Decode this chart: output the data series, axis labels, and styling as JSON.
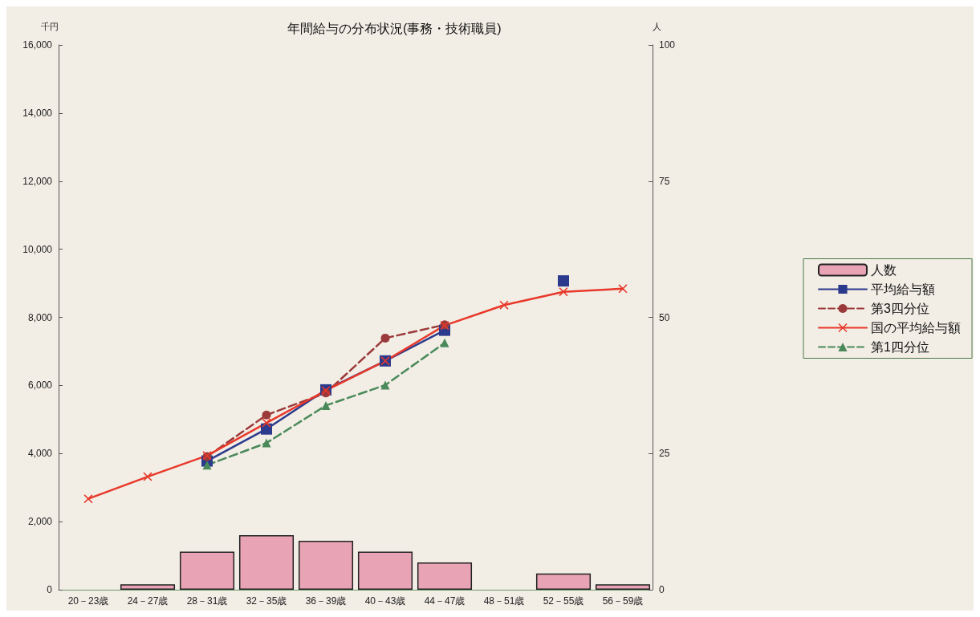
{
  "chart_data": {
    "type": "line",
    "title": "年間給与の分布状況(事務・技術職員)",
    "ylabel": "千円",
    "y2label": "人",
    "categories": [
      "20－23歳",
      "24－27歳",
      "28－31歳",
      "32－35歳",
      "36－39歳",
      "40－43歳",
      "44－47歳",
      "48－51歳",
      "52－55歳",
      "56－59歳"
    ],
    "series": [
      {
        "name": "人数",
        "type": "bar",
        "axis": "y2",
        "color": "#e8a3b4",
        "values": [
          null,
          1,
          7,
          10,
          9,
          7,
          5,
          null,
          3,
          1
        ]
      },
      {
        "name": "平均給与額",
        "color": "#2b3a8c",
        "marker": "square",
        "line_style": "solid",
        "values": [
          null,
          null,
          3780,
          4720,
          5870,
          6720,
          7620,
          null,
          9070,
          null
        ]
      },
      {
        "name": "第3四分位",
        "color": "#9b3a3a",
        "marker": "circle",
        "line_style": "dashed",
        "values": [
          null,
          null,
          3910,
          5130,
          5780,
          7390,
          7780,
          null,
          null,
          null
        ]
      },
      {
        "name": "国の平均給与額",
        "color": "#e8382a",
        "marker": "cross",
        "line_style": "solid",
        "values": [
          2670,
          3320,
          3940,
          4900,
          5850,
          6720,
          7760,
          8360,
          8750,
          8840
        ]
      },
      {
        "name": "第1四分位",
        "color": "#4a8a5a",
        "marker": "triangle",
        "line_style": "dashed",
        "values": [
          null,
          null,
          3660,
          4310,
          5410,
          6010,
          7250,
          null,
          null,
          null
        ]
      }
    ],
    "ylim": [
      0,
      16000
    ],
    "yticks": [
      0,
      {
        "value": 2000,
        "label": "2,000"
      },
      {
        "value": 4000,
        "label": "4,000"
      },
      {
        "value": 6000,
        "label": "6,000"
      },
      {
        "value": 8000,
        "label": "8,000"
      },
      {
        "value": 10000,
        "label": "10,000"
      },
      {
        "value": 12000,
        "label": "12,000"
      },
      {
        "value": 14000,
        "label": "14,000"
      },
      {
        "value": 16000,
        "label": "16,000"
      }
    ],
    "y2lim": [
      0,
      100
    ],
    "y2ticks": [
      0,
      25,
      50,
      75,
      100
    ],
    "grid": false,
    "legend": "right"
  }
}
